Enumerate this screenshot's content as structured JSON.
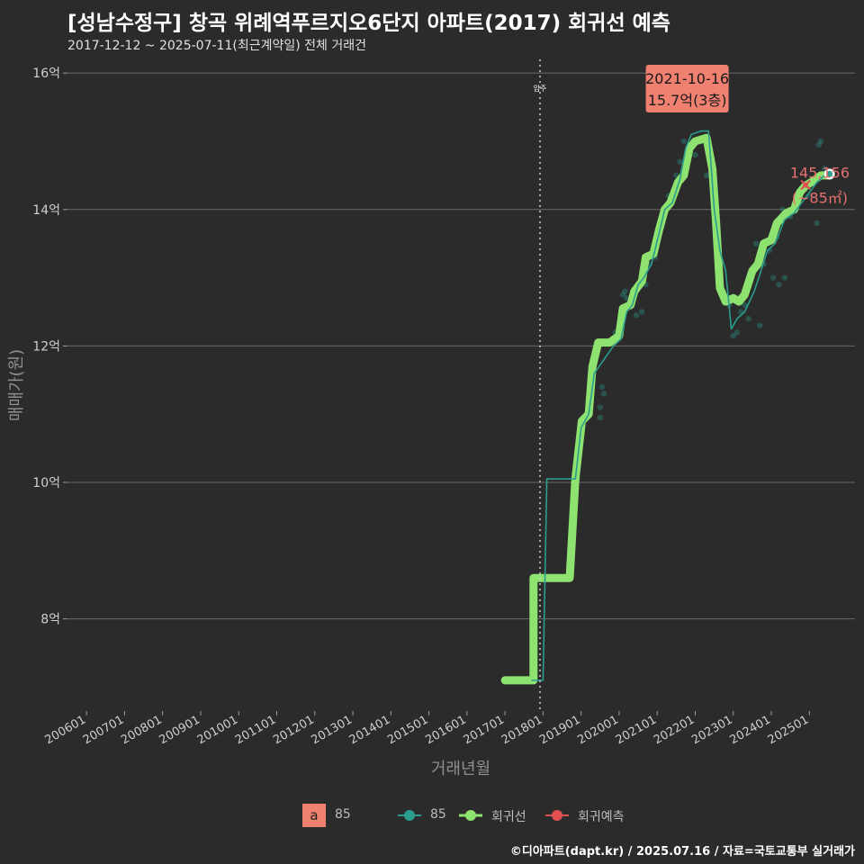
{
  "title": "[성남수정구] 창곡 위례역푸르지오6단지 아파트(2017) 회귀선 예측",
  "subtitle": "2017-12-12 ~ 2025-07-11(최근계약일) 전체 거래건",
  "footer": "©디아파트(dapt.kr) / 2025.07.16 / 자료=국토교통부 실거래가",
  "chart_data": {
    "type": "line",
    "xlabel": "거래년월",
    "ylabel": "매매가(원)",
    "x_ticks": [
      "200601",
      "200701",
      "200801",
      "200901",
      "201001",
      "201101",
      "201201",
      "201301",
      "201401",
      "201501",
      "201601",
      "201701",
      "201801",
      "201901",
      "202001",
      "202101",
      "202201",
      "202301",
      "202401",
      "202501"
    ],
    "y_ticks": [
      {
        "v": 8,
        "label": "8억"
      },
      {
        "v": 10,
        "label": "10억"
      },
      {
        "v": 12,
        "label": "12억"
      },
      {
        "v": 14,
        "label": "14억"
      },
      {
        "v": 16,
        "label": "16억"
      }
    ],
    "ylim": [
      6.65,
      16.2
    ],
    "xlim": [
      2005.5,
      2026.2
    ],
    "move_in": {
      "x": 2017.92,
      "label": "입주"
    },
    "annotation_max": {
      "x": 2021.79,
      "y": 15.7,
      "date": "2021-10-16",
      "text": "15.7억(3층)"
    },
    "prediction": {
      "x": 2024.9,
      "y": 14.36,
      "value": "145,156",
      "area": "(~85㎡)"
    },
    "last_point": {
      "x": 2025.53,
      "y": 14.52
    },
    "series": [
      {
        "name": "회귀선",
        "color": "#8ee26f",
        "points": [
          [
            2017.0,
            7.1
          ],
          [
            2017.75,
            7.1
          ],
          [
            2017.75,
            8.6
          ],
          [
            2018.7,
            8.6
          ],
          [
            2018.85,
            10.05
          ],
          [
            2019.02,
            10.9
          ],
          [
            2019.2,
            11.0
          ],
          [
            2019.3,
            11.7
          ],
          [
            2019.45,
            12.05
          ],
          [
            2019.75,
            12.05
          ],
          [
            2020.0,
            12.15
          ],
          [
            2020.1,
            12.55
          ],
          [
            2020.3,
            12.6
          ],
          [
            2020.4,
            12.8
          ],
          [
            2020.6,
            12.95
          ],
          [
            2020.7,
            13.3
          ],
          [
            2020.9,
            13.35
          ],
          [
            2021.05,
            13.7
          ],
          [
            2021.2,
            14.0
          ],
          [
            2021.35,
            14.1
          ],
          [
            2021.55,
            14.4
          ],
          [
            2021.7,
            14.5
          ],
          [
            2021.85,
            14.9
          ],
          [
            2022.0,
            15.0
          ],
          [
            2022.3,
            15.05
          ],
          [
            2022.45,
            14.6
          ],
          [
            2022.55,
            13.8
          ],
          [
            2022.65,
            12.85
          ],
          [
            2022.8,
            12.65
          ],
          [
            2023.0,
            12.7
          ],
          [
            2023.15,
            12.65
          ],
          [
            2023.3,
            12.75
          ],
          [
            2023.5,
            13.1
          ],
          [
            2023.65,
            13.2
          ],
          [
            2023.8,
            13.5
          ],
          [
            2024.0,
            13.55
          ],
          [
            2024.15,
            13.8
          ],
          [
            2024.4,
            13.95
          ],
          [
            2024.6,
            14.0
          ],
          [
            2024.75,
            14.25
          ],
          [
            2024.9,
            14.35
          ],
          [
            2025.05,
            14.4
          ],
          [
            2025.3,
            14.5
          ],
          [
            2025.55,
            14.5
          ]
        ]
      },
      {
        "name": "85",
        "color": "#2a9d8f",
        "points": [
          [
            2017.7,
            7.1
          ],
          [
            2018.0,
            7.1
          ],
          [
            2018.1,
            10.05
          ],
          [
            2018.85,
            10.05
          ],
          [
            2019.0,
            10.8
          ],
          [
            2019.2,
            11.0
          ],
          [
            2019.35,
            11.6
          ],
          [
            2019.6,
            11.8
          ],
          [
            2019.85,
            12.0
          ],
          [
            2020.05,
            12.1
          ],
          [
            2020.2,
            12.5
          ],
          [
            2020.35,
            12.6
          ],
          [
            2020.5,
            12.9
          ],
          [
            2020.65,
            13.0
          ],
          [
            2020.85,
            13.2
          ],
          [
            2021.05,
            13.65
          ],
          [
            2021.2,
            14.0
          ],
          [
            2021.4,
            14.1
          ],
          [
            2021.6,
            14.45
          ],
          [
            2021.75,
            14.9
          ],
          [
            2021.9,
            15.1
          ],
          [
            2022.15,
            15.15
          ],
          [
            2022.35,
            15.15
          ],
          [
            2022.5,
            14.0
          ],
          [
            2022.65,
            13.4
          ],
          [
            2022.8,
            13.1
          ],
          [
            2022.95,
            12.25
          ],
          [
            2023.1,
            12.4
          ],
          [
            2023.3,
            12.5
          ],
          [
            2023.55,
            12.8
          ],
          [
            2023.7,
            13.05
          ],
          [
            2023.9,
            13.4
          ],
          [
            2024.1,
            13.5
          ],
          [
            2024.35,
            13.85
          ],
          [
            2024.6,
            13.95
          ],
          [
            2024.8,
            14.1
          ],
          [
            2025.0,
            14.25
          ],
          [
            2025.2,
            14.4
          ],
          [
            2025.4,
            14.5
          ]
        ]
      },
      {
        "name": "85-scatter",
        "color": "#2a9d8f",
        "points": [
          [
            2018.9,
            10.05
          ],
          [
            2019.5,
            11.1
          ],
          [
            2019.6,
            11.3
          ],
          [
            2019.55,
            11.4
          ],
          [
            2019.5,
            10.95
          ],
          [
            2019.9,
            12.2
          ],
          [
            2020.05,
            12.4
          ],
          [
            2020.1,
            12.75
          ],
          [
            2020.15,
            12.8
          ],
          [
            2020.2,
            12.7
          ],
          [
            2020.45,
            12.45
          ],
          [
            2020.6,
            12.5
          ],
          [
            2020.7,
            12.9
          ],
          [
            2020.8,
            13.2
          ],
          [
            2020.95,
            13.3
          ],
          [
            2021.1,
            13.8
          ],
          [
            2021.2,
            14.0
          ],
          [
            2021.3,
            14.2
          ],
          [
            2021.5,
            14.5
          ],
          [
            2021.6,
            14.7
          ],
          [
            2021.7,
            15.0
          ],
          [
            2021.79,
            15.7
          ],
          [
            2021.9,
            14.9
          ],
          [
            2022.0,
            14.8
          ],
          [
            2022.15,
            15.0
          ],
          [
            2022.3,
            14.5
          ],
          [
            2022.5,
            14.45
          ],
          [
            2022.75,
            12.75
          ],
          [
            2022.9,
            12.6
          ],
          [
            2023.0,
            12.15
          ],
          [
            2023.1,
            12.2
          ],
          [
            2023.2,
            12.5
          ],
          [
            2023.3,
            12.6
          ],
          [
            2023.4,
            12.4
          ],
          [
            2023.6,
            13.5
          ],
          [
            2023.7,
            12.3
          ],
          [
            2023.8,
            13.2
          ],
          [
            2023.95,
            13.4
          ],
          [
            2024.05,
            13.0
          ],
          [
            2024.15,
            13.6
          ],
          [
            2024.2,
            12.9
          ],
          [
            2024.3,
            14.0
          ],
          [
            2024.35,
            13.0
          ],
          [
            2024.5,
            13.9
          ],
          [
            2024.7,
            14.1
          ],
          [
            2024.9,
            14.3
          ],
          [
            2025.0,
            14.2
          ],
          [
            2025.2,
            13.8
          ],
          [
            2025.25,
            14.95
          ],
          [
            2025.3,
            15.0
          ],
          [
            2025.4,
            14.6
          ]
        ]
      }
    ]
  },
  "legend": {
    "box_letter": "a",
    "box_label": "85",
    "series_85": "85",
    "regression": "회귀선",
    "prediction": "회귀예측"
  }
}
